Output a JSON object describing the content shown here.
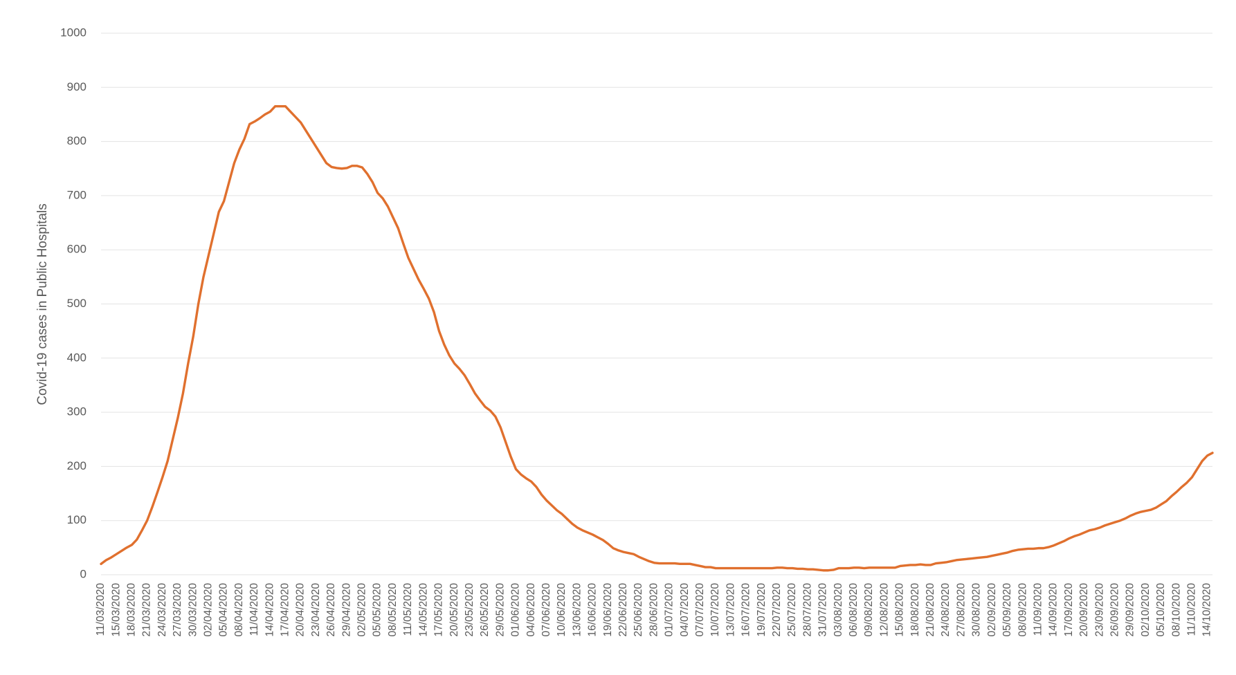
{
  "chart_data": {
    "type": "line",
    "y_label": "Covid-19 cases in Public Hospitals",
    "color": "#e0702e",
    "ylim": [
      0,
      1000
    ],
    "yticks": [
      0,
      100,
      200,
      300,
      400,
      500,
      600,
      700,
      800,
      900,
      1000
    ],
    "grid": true,
    "categories": [
      "11/03/2020",
      null,
      null,
      "15/03/2020",
      null,
      null,
      "18/03/2020",
      null,
      null,
      "21/03/2020",
      null,
      null,
      "24/03/2020",
      null,
      null,
      "27/03/2020",
      null,
      null,
      "30/03/2020",
      null,
      null,
      "02/04/2020",
      null,
      null,
      "05/04/2020",
      null,
      null,
      "08/04/2020",
      null,
      null,
      "11/04/2020",
      null,
      null,
      "14/04/2020",
      null,
      null,
      "17/04/2020",
      null,
      null,
      "20/04/2020",
      null,
      null,
      "23/04/2020",
      null,
      null,
      "26/04/2020",
      null,
      null,
      "29/04/2020",
      null,
      null,
      "02/05/2020",
      null,
      null,
      "05/05/2020",
      null,
      null,
      "08/05/2020",
      null,
      null,
      "11/05/2020",
      null,
      null,
      "14/05/2020",
      null,
      null,
      "17/05/2020",
      null,
      null,
      "20/05/2020",
      null,
      null,
      "23/05/2020",
      null,
      null,
      "26/05/2020",
      null,
      null,
      "29/05/2020",
      null,
      null,
      "01/06/2020",
      null,
      null,
      "04/06/2020",
      null,
      null,
      "07/06/2020",
      null,
      null,
      "10/06/2020",
      null,
      null,
      "13/06/2020",
      null,
      null,
      "16/06/2020",
      null,
      null,
      "19/06/2020",
      null,
      null,
      "22/06/2020",
      null,
      null,
      "25/06/2020",
      null,
      null,
      "28/06/2020",
      null,
      null,
      "01/07/2020",
      null,
      null,
      "04/07/2020",
      null,
      null,
      "07/07/2020",
      null,
      null,
      "10/07/2020",
      null,
      null,
      "13/07/2020",
      null,
      null,
      "16/07/2020",
      null,
      null,
      "19/07/2020",
      null,
      null,
      "22/07/2020",
      null,
      null,
      "25/07/2020",
      null,
      null,
      "28/07/2020",
      null,
      null,
      "31/07/2020",
      null,
      null,
      "03/08/2020",
      null,
      null,
      "06/08/2020",
      null,
      null,
      "09/08/2020",
      null,
      null,
      "12/08/2020",
      null,
      null,
      "15/08/2020",
      null,
      null,
      "18/08/2020",
      null,
      null,
      "21/08/2020",
      null,
      null,
      "24/08/2020",
      null,
      null,
      "27/08/2020",
      null,
      null,
      "30/08/2020",
      null,
      null,
      "02/09/2020",
      null,
      null,
      "05/09/2020",
      null,
      null,
      "08/09/2020",
      null,
      null,
      "11/09/2020",
      null,
      null,
      "14/09/2020",
      null,
      null,
      "17/09/2020",
      null,
      null,
      "20/09/2020",
      null,
      null,
      "23/09/2020",
      null,
      null,
      "26/09/2020",
      null,
      null,
      "29/09/2020",
      null,
      null,
      "02/10/2020",
      null,
      null,
      "05/10/2020",
      null,
      null,
      "08/10/2020",
      null,
      null,
      "11/10/2020",
      null,
      null,
      "14/10/2020",
      null
    ],
    "values": [
      20,
      27,
      32,
      38,
      44,
      50,
      55,
      65,
      82,
      100,
      125,
      152,
      180,
      210,
      250,
      290,
      335,
      390,
      440,
      500,
      550,
      590,
      630,
      670,
      690,
      725,
      760,
      785,
      805,
      832,
      837,
      843,
      850,
      855,
      865,
      865,
      865,
      855,
      845,
      835,
      820,
      805,
      790,
      775,
      760,
      753,
      751,
      750,
      751,
      755,
      755,
      752,
      740,
      725,
      705,
      695,
      680,
      660,
      640,
      612,
      585,
      565,
      545,
      528,
      510,
      485,
      450,
      425,
      405,
      390,
      380,
      368,
      352,
      335,
      322,
      310,
      303,
      292,
      272,
      245,
      218,
      195,
      185,
      178,
      172,
      162,
      148,
      137,
      128,
      119,
      112,
      103,
      94,
      87,
      82,
      78,
      74,
      69,
      64,
      57,
      49,
      45,
      42,
      40,
      38,
      33,
      29,
      25,
      22,
      21,
      21,
      21,
      21,
      20,
      20,
      20,
      18,
      16,
      14,
      14,
      12,
      12,
      12,
      12,
      12,
      12,
      12,
      12,
      12,
      12,
      12,
      12,
      13,
      13,
      12,
      12,
      11,
      11,
      10,
      10,
      9,
      8,
      8,
      9,
      12,
      12,
      12,
      13,
      13,
      12,
      13,
      13,
      13,
      13,
      13,
      13,
      16,
      17,
      18,
      18,
      19,
      18,
      18,
      21,
      22,
      23,
      25,
      27,
      28,
      29,
      30,
      31,
      32,
      33,
      35,
      37,
      39,
      41,
      44,
      46,
      47,
      48,
      48,
      49,
      49,
      51,
      54,
      58,
      62,
      67,
      71,
      74,
      78,
      82,
      84,
      87,
      91,
      94,
      97,
      100,
      104,
      109,
      113,
      116,
      118,
      120,
      124,
      130,
      136,
      145,
      153,
      162,
      170,
      180,
      195,
      210,
      220,
      225
    ]
  }
}
